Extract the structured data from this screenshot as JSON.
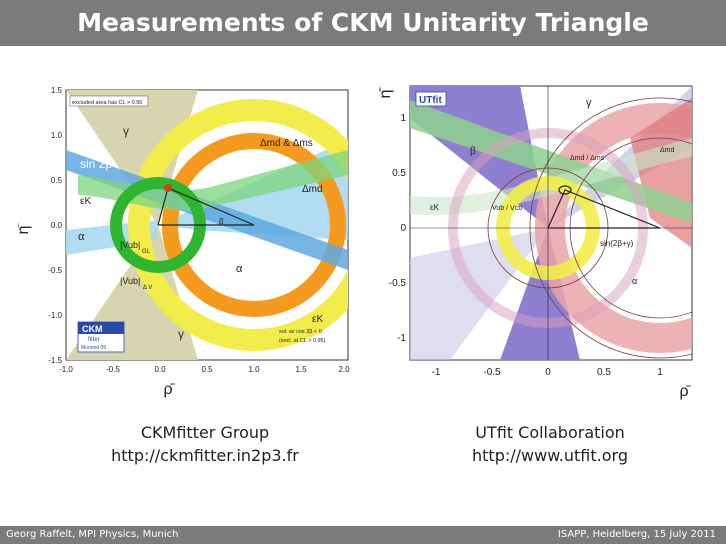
{
  "slide": {
    "title": "Measurements of CKM Unitarity Triangle",
    "footer_left": "Georg Raffelt, MPI Physics, Munich",
    "footer_right": "ISAPP, Heidelberg, 15 July 2011"
  },
  "left_plot": {
    "caption_line1": "CKMfitter Group",
    "caption_line2": "http://ckmfitter.in2p3.fr",
    "legend_note": "excluded area has CL > 0.95",
    "x_ticks": [
      "-1.0",
      "-0.5",
      "0.0",
      "0.5",
      "1.0",
      "1.5",
      "2.0"
    ],
    "y_ticks": [
      "1.5",
      "1.0",
      "0.5",
      "0.0",
      "-0.5",
      "-1.0",
      "-1.5"
    ],
    "xlabel": "ρ̄",
    "ylabel": "η̄",
    "labels": {
      "gamma_top": "γ",
      "gamma_bottom": "γ",
      "sin2b": "sin 2β",
      "eps_k": "εK",
      "alpha_left": "α",
      "alpha_right": "α",
      "vub": "|Vub|",
      "vub_sub": "GL",
      "vub2": "|Vub|",
      "vub2_sub": "Δ V",
      "dmd_dms": "Δmd & Δms",
      "dmd": "Δmd",
      "eps_k_right": "εK",
      "beta": "β",
      "note1": "sol. w/ cos 2β < 0",
      "note2": "(excl. at CL > 0.95)",
      "logo": "CKM",
      "logo_sub": "fitter",
      "logo_date": "Moriond 09"
    }
  },
  "right_plot": {
    "caption_line1": "UTfit Collaboration",
    "caption_line2": "http://www.utfit.org",
    "x_ticks": [
      "-1",
      "-0.5",
      "0",
      "0.5",
      "1"
    ],
    "y_ticks": [
      "1",
      "0.5",
      "0",
      "-0.5",
      "-1"
    ],
    "xlabel": "ρ̄",
    "ylabel": "η̄",
    "logo": "UTfit",
    "labels": {
      "gamma": "γ",
      "beta": "β",
      "dmd_ratio": "Δmd / Δms",
      "dmd": "Δmd",
      "eps_k": "εK",
      "vub_vcb": "Vub / Vcb",
      "sin2bg": "sin(2β+γ)",
      "alpha": "α"
    }
  },
  "colors": {
    "title_bg": "#7b7b7b",
    "gamma_band": "#d8d4b0",
    "sin2b_band": "#5ea8e0",
    "green_ring": "#2fb52f",
    "orange_ring": "#f39a1f",
    "yellow_ring": "#f2ed4a",
    "light_blue": "#a8d8f0",
    "purple": "#8e7fd0",
    "pink": "#e9a4a8",
    "lavender": "#c9c6e6"
  }
}
